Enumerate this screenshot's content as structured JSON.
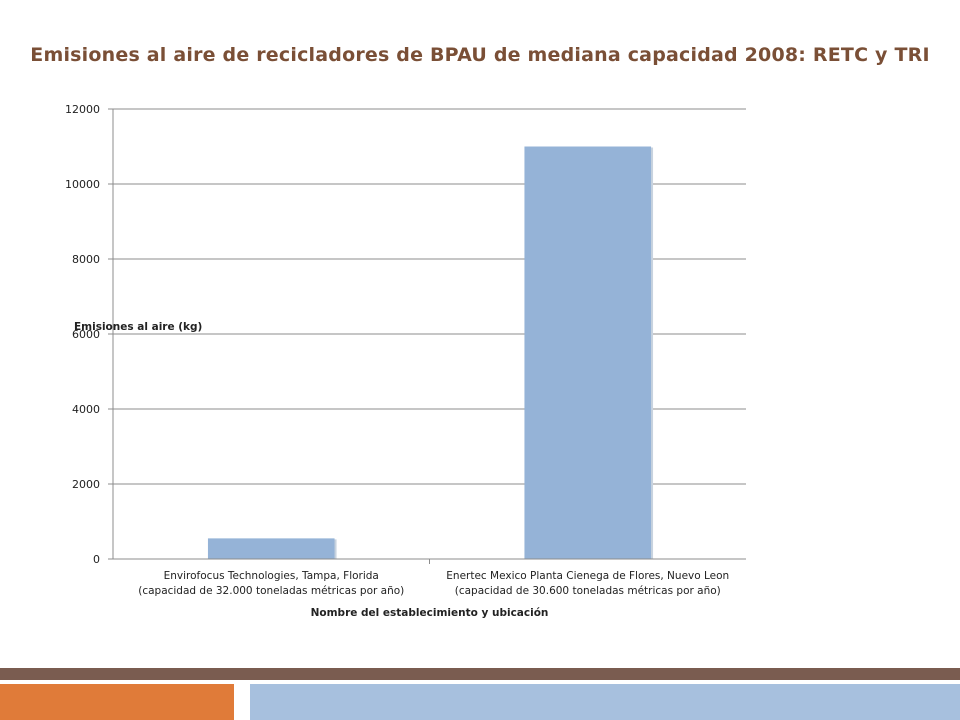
{
  "slide": {
    "title": "Emisiones al aire de recicladores de BPAU de mediana capacidad 2008: RETC y TRI"
  },
  "colors": {
    "title": "#7a4f36",
    "bar": "#95b3d7",
    "grid": "#8c8c8c",
    "footer_top": "#7a5c50",
    "footer_left": "#e07b39",
    "footer_right": "#a7c0de"
  },
  "chart_data": {
    "type": "bar",
    "title": "",
    "xlabel": "Nombre del establecimiento y ubicación",
    "ylabel": "Emisiones al aire (kg)",
    "ylim": [
      0,
      12000
    ],
    "yticks": [
      0,
      2000,
      4000,
      6000,
      8000,
      10000,
      12000
    ],
    "grid": true,
    "categories": [
      {
        "line1": "Envirofocus Technologies, Tampa, Florida",
        "line2": "(capacidad de 32.000 toneladas métricas por año)"
      },
      {
        "line1": "Enertec Mexico Planta Cienega de Flores, Nuevo Leon",
        "line2": "(capacidad de 30.600 toneladas métricas por año)"
      }
    ],
    "values": [
      550,
      11000
    ]
  }
}
